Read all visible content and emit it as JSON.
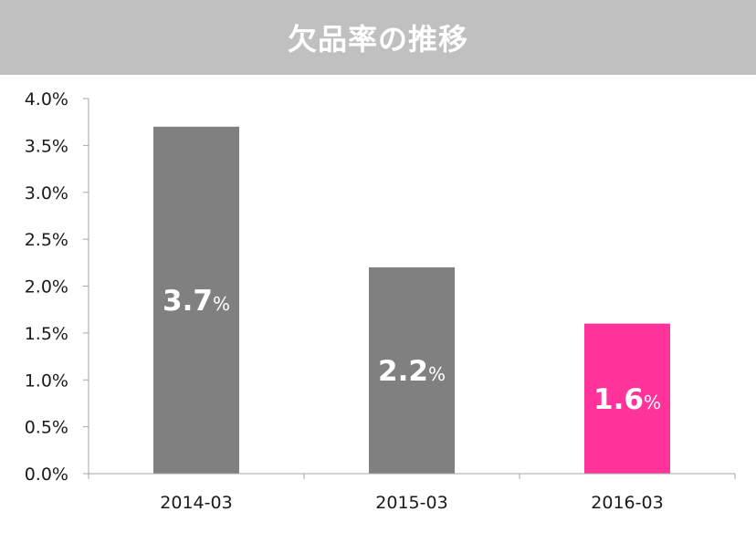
{
  "title": "欠品率の推移",
  "colors": {
    "title_bg": "#c0c0c0",
    "title_text": "#ffffff",
    "bar_default": "#808080",
    "bar_highlight": "#ff3399",
    "axis": "#a6a6a6",
    "tick_text": "#1a1a1a",
    "label_text": "#ffffff"
  },
  "chart_data": {
    "type": "bar",
    "title": "欠品率の推移",
    "categories": [
      "2014-03",
      "2015-03",
      "2016-03"
    ],
    "values": [
      3.7,
      2.2,
      1.6
    ],
    "value_labels": [
      "3.7",
      "2.2",
      "1.6"
    ],
    "value_unit": "%",
    "highlight_index": 2,
    "ylim": [
      0,
      4.0
    ],
    "yticks": [
      "0.0%",
      "0.5%",
      "1.0%",
      "1.5%",
      "2.0%",
      "2.5%",
      "3.0%",
      "3.5%",
      "4.0%"
    ],
    "grid": false,
    "legend": "none",
    "xlabel": "",
    "ylabel": ""
  }
}
